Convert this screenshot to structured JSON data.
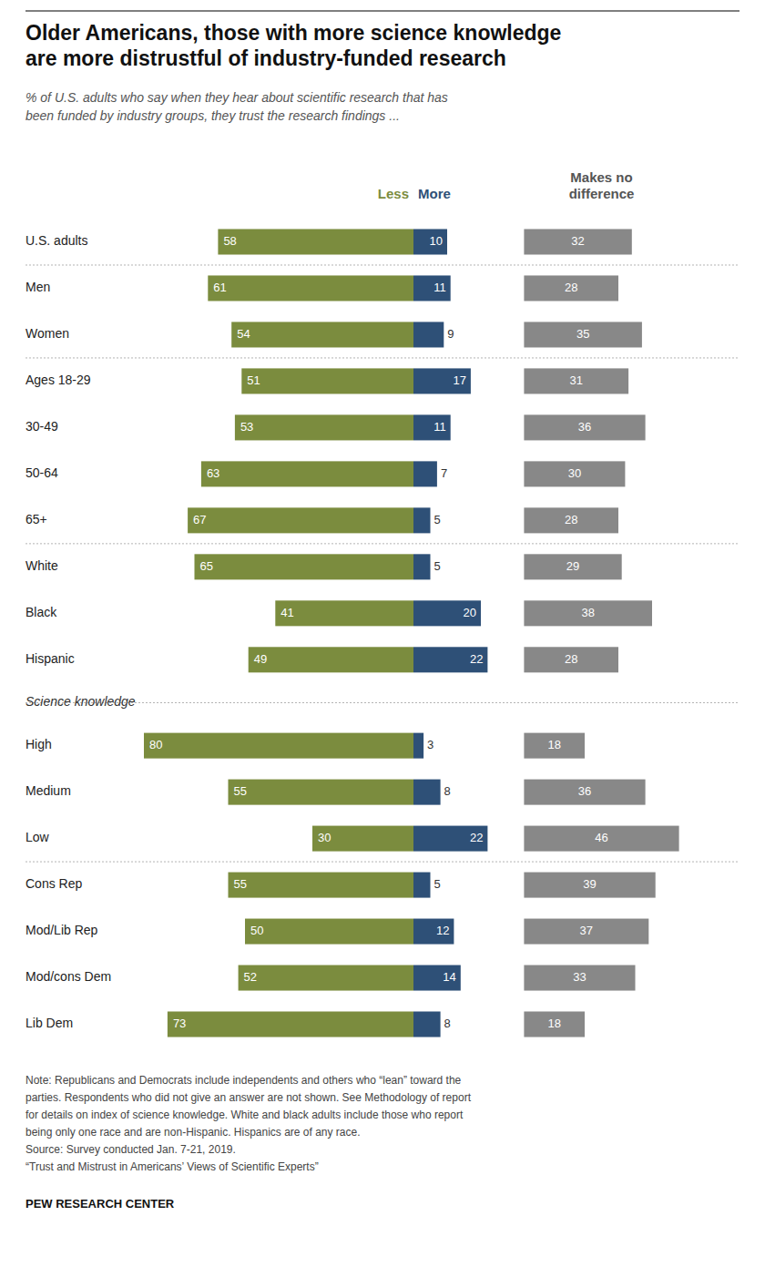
{
  "chart_data": {
    "type": "bar",
    "orientation": "horizontal",
    "title": "Older Americans, those with more science knowledge\nare more distrustful of industry-funded research",
    "subtitle": "% of U.S. adults who say when they hear about scientific research that has\nbeen funded by industry groups, they trust the research findings ...",
    "categories": [
      "U.S. adults",
      "Men",
      "Women",
      "Ages 18-29",
      "30-49",
      "50-64",
      "65+",
      "White",
      "Black",
      "Hispanic",
      "High",
      "Medium",
      "Low",
      "Cons Rep",
      "Mod/Lib Rep",
      "Mod/cons Dem",
      "Lib Dem"
    ],
    "series": [
      {
        "name": "Less",
        "color": "#7b8c3e",
        "values": [
          58,
          61,
          54,
          51,
          53,
          63,
          67,
          65,
          41,
          49,
          80,
          55,
          30,
          55,
          50,
          52,
          73
        ]
      },
      {
        "name": "More",
        "color": "#2e5077",
        "values": [
          10,
          11,
          9,
          17,
          11,
          7,
          5,
          5,
          20,
          22,
          3,
          8,
          22,
          5,
          12,
          14,
          8
        ]
      },
      {
        "name": "Makes no\ndifference",
        "color": "#888888",
        "values": [
          32,
          28,
          35,
          31,
          36,
          30,
          28,
          29,
          38,
          28,
          18,
          36,
          46,
          39,
          37,
          33,
          18
        ]
      }
    ],
    "xlim": [
      0,
      100
    ],
    "data_labels": true,
    "tick_labels": false,
    "grid": false,
    "annotations": [
      "Science knowledge"
    ],
    "note": "Note: Republicans and Democrats include independents and others who “lean” toward the\nparties. Respondents who did not give an answer are not shown. See Methodology of report\nfor details on index of science knowledge. White and black adults include those who report\nbeing only one race and are non-Hispanic. Hispanics are of any race.\nSource: Survey conducted Jan. 7-21, 2019.\n“Trust and Mistrust in Americans’ Views of Scientific Experts”",
    "source": "PEW RESEARCH CENTER"
  }
}
